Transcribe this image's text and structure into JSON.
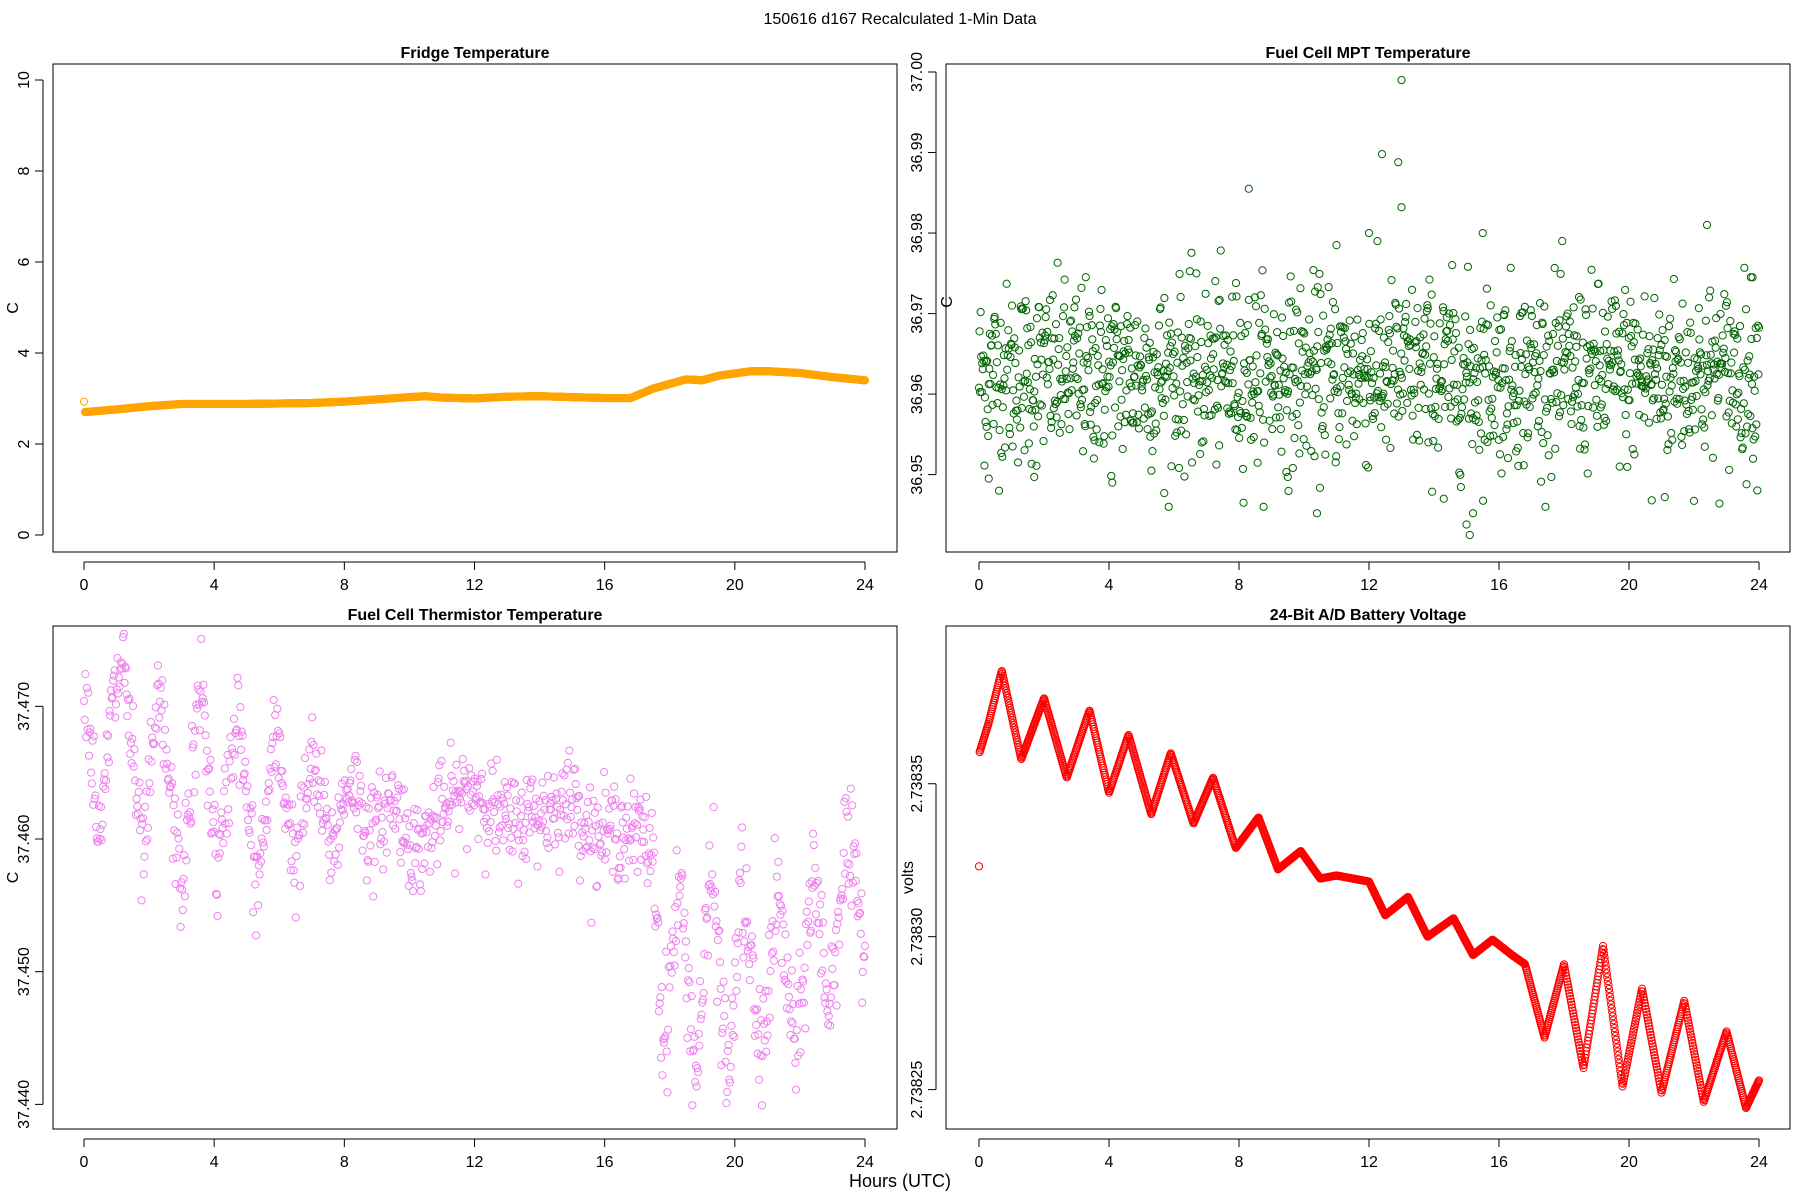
{
  "title": "150616   d167   Recalculated 1-Min Data",
  "xlabel": "Hours (UTC)",
  "colors": {
    "fridge": "#FFA500",
    "mpt": "#006400",
    "thermistor": "#EE82EE",
    "battery": "#FF0000",
    "axis": "#000000"
  },
  "chart_data": [
    {
      "id": "fridge",
      "type": "scatter",
      "title": "Fridge Temperature",
      "xlabel": "",
      "ylabel": "C",
      "xlim": [
        0,
        24
      ],
      "ylim": [
        0,
        10
      ],
      "xticks": [
        0,
        4,
        8,
        12,
        16,
        20,
        24
      ],
      "yticks": [
        0,
        2,
        4,
        6,
        8,
        10
      ],
      "ytick_labels": [
        "0",
        "2",
        "4",
        "6",
        "8",
        "10"
      ],
      "marker": "open-circle",
      "grid": false,
      "x": [
        0,
        0.03,
        0.5,
        1,
        2,
        3,
        4,
        5,
        6,
        7,
        8,
        9,
        10,
        10.5,
        11,
        12,
        13,
        14,
        15,
        16,
        16.8,
        17.5,
        18.5,
        19,
        19.5,
        20.5,
        21,
        22,
        23,
        24
      ],
      "y": [
        2.93,
        2.7,
        2.73,
        2.76,
        2.83,
        2.88,
        2.88,
        2.88,
        2.89,
        2.9,
        2.93,
        2.98,
        3.03,
        3.05,
        3.02,
        3.0,
        3.04,
        3.05,
        3.03,
        3.01,
        3.01,
        3.22,
        3.42,
        3.4,
        3.5,
        3.6,
        3.6,
        3.56,
        3.47,
        3.4
      ]
    },
    {
      "id": "mpt",
      "type": "scatter",
      "title": "Fuel Cell MPT Temperature",
      "xlabel": "",
      "ylabel": "C",
      "xlim": [
        0,
        24
      ],
      "ylim": [
        36.9425,
        37.0
      ],
      "xticks": [
        0,
        4,
        8,
        12,
        16,
        20,
        24
      ],
      "yticks": [
        36.95,
        36.96,
        36.97,
        36.98,
        36.99,
        37.0
      ],
      "ytick_labels": [
        "36.95",
        "36.96",
        "36.97",
        "36.98",
        "36.99",
        "37.00"
      ],
      "marker": "open-circle",
      "grid": false,
      "noise": {
        "n": 1440,
        "center": 36.9625,
        "sd": 0.0065
      },
      "x": [
        0.3,
        1.7,
        4.1,
        5.7,
        8.3,
        9.5,
        10.4,
        11.0,
        12.0,
        12.4,
        12.9,
        13.0,
        13.0,
        14.3,
        15.0,
        15.1,
        15.2,
        15.5,
        20.7,
        21.1,
        22.4,
        23.8
      ],
      "y": [
        36.9495,
        36.9497,
        36.949,
        36.9477,
        36.9855,
        36.9497,
        36.9452,
        36.9785,
        36.98,
        36.9898,
        36.9888,
        36.9832,
        36.999,
        36.947,
        36.9438,
        36.9425,
        36.9452,
        36.98,
        36.9468,
        36.9472,
        36.981,
        36.9745
      ]
    },
    {
      "id": "thermistor",
      "type": "scatter",
      "title": "Fuel Cell Thermistor Temperature",
      "xlabel": "",
      "ylabel": "C",
      "xlim": [
        0,
        24
      ],
      "ylim": [
        37.4395,
        37.475
      ],
      "xticks": [
        0,
        4,
        8,
        12,
        16,
        20,
        24
      ],
      "yticks": [
        37.44,
        37.45,
        37.46,
        37.47
      ],
      "ytick_labels": [
        "37.440",
        "37.450",
        "37.460",
        "37.470"
      ],
      "marker": "open-circle",
      "grid": false,
      "x": [
        0.0,
        0.5,
        0.8,
        1.2,
        1.8,
        2.3,
        3.0,
        3.6,
        4.1,
        4.7,
        5.3,
        5.9,
        6.5,
        7.0,
        7.6,
        8.2,
        8.8,
        9.5,
        10.2,
        11.0,
        12.0,
        13.0,
        14.0,
        15.0,
        15.7,
        16.5,
        17.2,
        17.5,
        17.8,
        18.3,
        18.8,
        19.3,
        19.8,
        20.2,
        20.8,
        21.3,
        21.9,
        22.4,
        22.9,
        23.4,
        24.0
      ],
      "y": [
        37.473,
        37.459,
        37.469,
        37.474,
        37.458,
        37.471,
        37.456,
        37.472,
        37.457,
        37.47,
        37.456,
        37.468,
        37.458,
        37.466,
        37.459,
        37.465,
        37.46,
        37.463,
        37.459,
        37.462,
        37.464,
        37.461,
        37.462,
        37.463,
        37.46,
        37.461,
        37.46,
        37.459,
        37.444,
        37.457,
        37.442,
        37.458,
        37.441,
        37.457,
        37.443,
        37.456,
        37.443,
        37.458,
        37.447,
        37.46,
        37.452
      ]
    },
    {
      "id": "battery",
      "type": "scatter",
      "title": "24-Bit A/D Battery Voltage",
      "xlabel": "",
      "ylabel": "volts",
      "xlim": [
        0,
        24
      ],
      "ylim": [
        2.738243,
        2.738397
      ],
      "xticks": [
        0,
        4,
        8,
        12,
        16,
        20,
        24
      ],
      "yticks": [
        2.73825,
        2.7383,
        2.73835
      ],
      "ytick_labels": [
        "2.73825",
        "2.73830",
        "2.73835"
      ],
      "marker": "open-circle",
      "grid": false,
      "x": [
        0.0,
        0.01,
        0.3,
        0.7,
        1.3,
        2.0,
        2.7,
        3.4,
        4.0,
        4.6,
        5.3,
        5.9,
        6.6,
        7.2,
        7.9,
        8.6,
        9.2,
        9.9,
        10.5,
        11.0,
        12.0,
        12.5,
        13.2,
        13.8,
        14.6,
        15.2,
        15.8,
        16.4,
        16.8,
        17.4,
        18.0,
        18.6,
        19.2,
        19.8,
        20.4,
        21.0,
        21.7,
        22.3,
        23.0,
        23.6,
        24.0
      ],
      "y": [
        2.738323,
        2.73836,
        2.73837,
        2.738387,
        2.738358,
        2.738378,
        2.738352,
        2.738374,
        2.738347,
        2.738366,
        2.73834,
        2.73836,
        2.738337,
        2.738352,
        2.738329,
        2.738339,
        2.738322,
        2.738328,
        2.738319,
        2.73832,
        2.738318,
        2.738307,
        2.738313,
        2.7383,
        2.738306,
        2.738294,
        2.738299,
        2.738294,
        2.738291,
        2.738267,
        2.738291,
        2.738257,
        2.738297,
        2.738251,
        2.738283,
        2.738249,
        2.738279,
        2.738246,
        2.738269,
        2.738244,
        2.738253
      ]
    }
  ]
}
